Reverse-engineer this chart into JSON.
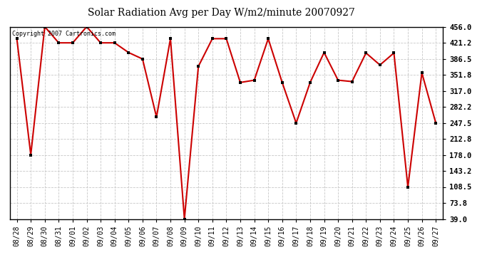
{
  "title": "Solar Radiation Avg per Day W/m2/minute 20070927",
  "copyright": "Copyright 2007 Cartronics.com",
  "dates": [
    "08/28",
    "08/29",
    "08/30",
    "08/31",
    "09/01",
    "09/02",
    "09/03",
    "09/04",
    "09/05",
    "09/06",
    "09/07",
    "09/08",
    "09/09",
    "09/10",
    "09/11",
    "09/12",
    "09/13",
    "09/14",
    "09/15",
    "09/16",
    "09/17",
    "09/18",
    "09/19",
    "09/20",
    "09/21",
    "09/22",
    "09/23",
    "09/24",
    "09/25",
    "09/26",
    "09/27"
  ],
  "values": [
    430,
    178,
    456,
    421,
    421,
    456,
    421,
    421,
    400,
    386,
    260,
    430,
    39,
    370,
    430,
    430,
    335,
    340,
    430,
    335,
    247,
    335,
    400,
    340,
    337,
    399,
    373,
    399,
    108,
    356,
    247
  ],
  "line_color": "#cc0000",
  "marker_color": "#000000",
  "bg_color": "#ffffff",
  "grid_color": "#c8c8c8",
  "yticks": [
    39.0,
    73.8,
    108.5,
    143.2,
    178.0,
    212.8,
    247.5,
    282.2,
    317.0,
    351.8,
    386.5,
    421.2,
    456.0
  ],
  "ymin": 39.0,
  "ymax": 456.0,
  "title_fontsize": 10,
  "tick_fontsize": 7,
  "ytick_fontsize": 7.5
}
